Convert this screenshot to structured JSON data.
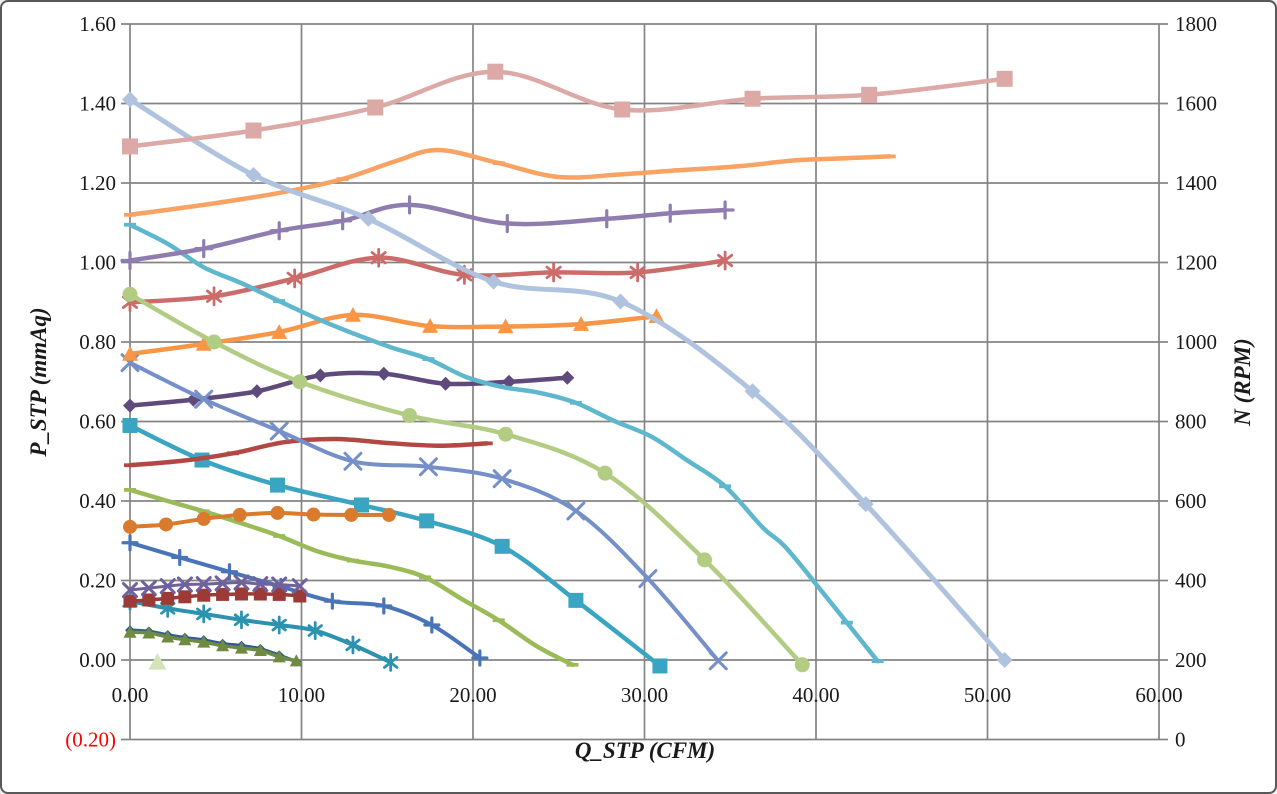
{
  "chart_data": {
    "type": "line",
    "title": "",
    "xlabel": "Q_STP (CFM)",
    "ylabel_left": "P_STP (mmAq)",
    "ylabel_right": "N (RPM)",
    "xlim": [
      0,
      60
    ],
    "ylim_left": [
      -0.2,
      1.6
    ],
    "ylim_right": [
      0,
      1800
    ],
    "grid": true,
    "legend_position": "none",
    "x_tick_labels": [
      "0.00",
      "10.00",
      "20.00",
      "30.00",
      "40.00",
      "50.00",
      "60.00"
    ],
    "y_left_tick_labels": [
      "1.60",
      "1.40",
      "1.20",
      "1.00",
      "0.80",
      "0.60",
      "0.40",
      "0.20",
      "0.00",
      "(0.20)"
    ],
    "y_left_tick_values": [
      1.6,
      1.4,
      1.2,
      1.0,
      0.8,
      0.6,
      0.4,
      0.2,
      0.0,
      -0.2
    ],
    "y_right_tick_labels": [
      "1800",
      "1600",
      "1400",
      "1200",
      "1000",
      "800",
      "600",
      "400",
      "200",
      "0"
    ],
    "negative_tick_color": "#FF0000",
    "series": [
      {
        "id": "navy-diamond-pq",
        "color": "#2F5B92",
        "marker": "diamond",
        "size": 5,
        "width": 3.5,
        "mstep": 1,
        "points": [
          [
            0,
            0.075
          ],
          [
            1.1,
            0.072
          ],
          [
            2.2,
            0.063
          ],
          [
            3.2,
            0.056
          ],
          [
            4.3,
            0.05
          ],
          [
            5.4,
            0.041
          ],
          [
            6.5,
            0.036
          ],
          [
            7.6,
            0.028
          ],
          [
            8.7,
            0.012
          ],
          [
            9.7,
            -0.004
          ]
        ]
      },
      {
        "id": "darkgreen-triangle-pq",
        "color": "#6F8B43",
        "marker": "triangle",
        "size": 6.5,
        "width": 3.5,
        "mstep": 1,
        "points": [
          [
            0,
            0.07
          ],
          [
            1.1,
            0.068
          ],
          [
            2.2,
            0.058
          ],
          [
            3.2,
            0.051
          ],
          [
            4.3,
            0.045
          ],
          [
            5.4,
            0.036
          ],
          [
            6.5,
            0.03
          ],
          [
            7.6,
            0.024
          ],
          [
            8.7,
            0.008
          ],
          [
            9.7,
            -0.002
          ]
        ]
      },
      {
        "id": "navy-plus-pq",
        "color": "#4A74B8",
        "marker": "plus",
        "size": 7,
        "width": 4,
        "mstep": 1,
        "points": [
          [
            0,
            0.295
          ],
          [
            2.9,
            0.258
          ],
          [
            5.8,
            0.222
          ],
          [
            8.8,
            0.185
          ],
          [
            11.8,
            0.148
          ],
          [
            14.8,
            0.136
          ],
          [
            17.6,
            0.088
          ],
          [
            20.4,
            0.005
          ]
        ]
      },
      {
        "id": "teal-asterisk-pq",
        "color": "#2C92AF",
        "marker": "asterisk",
        "size": 8,
        "width": 4,
        "mstep": 1,
        "points": [
          [
            0,
            0.148
          ],
          [
            2.2,
            0.13
          ],
          [
            4.3,
            0.116
          ],
          [
            6.5,
            0.101
          ],
          [
            8.7,
            0.088
          ],
          [
            10.8,
            0.074
          ],
          [
            13,
            0.038
          ],
          [
            15.2,
            -0.006
          ]
        ]
      },
      {
        "id": "darkred-square-n",
        "color": "#9C3A38",
        "marker": "square",
        "size": 6.5,
        "width": 3.5,
        "mstep": 1,
        "points": [
          [
            0,
            0.148
          ],
          [
            1.1,
            0.151
          ],
          [
            2.2,
            0.155
          ],
          [
            3.2,
            0.159
          ],
          [
            4.3,
            0.163
          ],
          [
            5.4,
            0.165
          ],
          [
            6.5,
            0.166
          ],
          [
            7.6,
            0.166
          ],
          [
            8.7,
            0.165
          ],
          [
            9.9,
            0.161
          ]
        ]
      },
      {
        "id": "purple-x-n",
        "color": "#70619E",
        "marker": "x",
        "size": 6.5,
        "width": 3,
        "mstep": 1,
        "points": [
          [
            0,
            0.176
          ],
          [
            1.1,
            0.181
          ],
          [
            2.2,
            0.186
          ],
          [
            3.2,
            0.19
          ],
          [
            4.3,
            0.191
          ],
          [
            5.4,
            0.193
          ],
          [
            6.5,
            0.195
          ],
          [
            7.6,
            0.191
          ],
          [
            8.7,
            0.19
          ],
          [
            9.9,
            0.186
          ]
        ]
      },
      {
        "id": "palegreen-triangle-n",
        "color": "#D5E3BB",
        "marker": "triangle",
        "size": 9,
        "width": 3,
        "mstep": 1,
        "points": [
          [
            1.6,
            -0.005
          ]
        ]
      },
      {
        "id": "olive-dash-pq",
        "color": "#9BBB59",
        "marker": "dash",
        "size": 6,
        "width": 4.5,
        "mstep": 2,
        "points": [
          [
            0,
            0.428
          ],
          [
            2.2,
            0.4
          ],
          [
            4.3,
            0.374
          ],
          [
            6.5,
            0.344
          ],
          [
            8.7,
            0.312
          ],
          [
            10.9,
            0.274
          ],
          [
            13,
            0.25
          ],
          [
            15.1,
            0.235
          ],
          [
            17.2,
            0.208
          ],
          [
            19.4,
            0.152
          ],
          [
            21.5,
            0.1
          ],
          [
            23.7,
            0.035
          ],
          [
            25.8,
            -0.012
          ]
        ]
      },
      {
        "id": "teal-square-pq",
        "color": "#39A5C2",
        "marker": "square",
        "size": 7.5,
        "width": 4.5,
        "mstep": 1,
        "points": [
          [
            0,
            0.59
          ],
          [
            4.2,
            0.503
          ],
          [
            8.6,
            0.44
          ],
          [
            13.5,
            0.39
          ],
          [
            17.3,
            0.35
          ],
          [
            21.7,
            0.286
          ],
          [
            26,
            0.15
          ],
          [
            30.9,
            -0.015
          ]
        ]
      },
      {
        "id": "orange-circle-n",
        "color": "#D97A2D",
        "marker": "circle",
        "size": 7,
        "width": 4,
        "mstep": 1,
        "points": [
          [
            0,
            0.335
          ],
          [
            2.1,
            0.341
          ],
          [
            4.3,
            0.355
          ],
          [
            6.4,
            0.365
          ],
          [
            8.6,
            0.37
          ],
          [
            10.7,
            0.366
          ],
          [
            12.9,
            0.365
          ],
          [
            15.1,
            0.365
          ]
        ]
      },
      {
        "id": "darkred-dash-n",
        "color": "#B34744",
        "marker": "dash",
        "size": 6,
        "width": 4.5,
        "mstep": 2,
        "points": [
          [
            0,
            0.49
          ],
          [
            3,
            0.501
          ],
          [
            6,
            0.52
          ],
          [
            9,
            0.548
          ],
          [
            12,
            0.556
          ],
          [
            15,
            0.546
          ],
          [
            18,
            0.539
          ],
          [
            20.8,
            0.545
          ]
        ]
      },
      {
        "id": "purple-diamond-n",
        "color": "#5F4A7C",
        "marker": "diamond",
        "size": 7,
        "width": 4.5,
        "mstep": 1,
        "points": [
          [
            0,
            0.64
          ],
          [
            3.7,
            0.655
          ],
          [
            7.4,
            0.676
          ],
          [
            11.1,
            0.716
          ],
          [
            14.8,
            0.72
          ],
          [
            18.4,
            0.695
          ],
          [
            22.1,
            0.7
          ],
          [
            25.5,
            0.71
          ]
        ]
      },
      {
        "id": "bluegray-x-pq",
        "color": "#7590C8",
        "marker": "x",
        "size": 8,
        "width": 4,
        "mstep": 1,
        "points": [
          [
            0,
            0.748
          ],
          [
            4.3,
            0.656
          ],
          [
            8.7,
            0.576
          ],
          [
            13,
            0.5
          ],
          [
            17.4,
            0.486
          ],
          [
            21.7,
            0.456
          ],
          [
            26,
            0.375
          ],
          [
            30.2,
            0.205
          ],
          [
            34.3,
            -0.002
          ]
        ]
      },
      {
        "id": "red-asterisk-n",
        "color": "#CB6C6A",
        "marker": "asterisk",
        "size": 8.5,
        "width": 4.5,
        "mstep": 1,
        "points": [
          [
            0,
            0.9
          ],
          [
            4.9,
            0.915
          ],
          [
            9.6,
            0.96
          ],
          [
            14.5,
            1.012
          ],
          [
            19.5,
            0.969
          ],
          [
            24.7,
            0.975
          ],
          [
            29.6,
            0.975
          ],
          [
            34.7,
            1.005
          ]
        ]
      },
      {
        "id": "orange-triangle-n",
        "color": "#F79646",
        "marker": "triangle",
        "size": 8,
        "width": 4.5,
        "mstep": 1,
        "points": [
          [
            0,
            0.77
          ],
          [
            4.3,
            0.795
          ],
          [
            8.7,
            0.825
          ],
          [
            13,
            0.868
          ],
          [
            17.5,
            0.84
          ],
          [
            21.9,
            0.839
          ],
          [
            26.3,
            0.845
          ],
          [
            30.7,
            0.865
          ]
        ]
      },
      {
        "id": "lightgreen-circle-pq",
        "color": "#B2CC84",
        "marker": "circle",
        "size": 7.5,
        "width": 4.5,
        "mstep": 1,
        "points": [
          [
            0,
            0.92
          ],
          [
            4.9,
            0.8
          ],
          [
            9.9,
            0.7
          ],
          [
            16.3,
            0.615
          ],
          [
            21.9,
            0.568
          ],
          [
            27.7,
            0.47
          ],
          [
            33.5,
            0.252
          ],
          [
            39.2,
            -0.012
          ]
        ]
      },
      {
        "id": "cyan-dash-pq",
        "color": "#5FB7CE",
        "marker": "dash",
        "size": 6,
        "width": 4.5,
        "mstep": 4,
        "points": [
          [
            0,
            1.095
          ],
          [
            2.2,
            1.047
          ],
          [
            4.3,
            0.988
          ],
          [
            6.5,
            0.948
          ],
          [
            8.7,
            0.903
          ],
          [
            11,
            0.857
          ],
          [
            13,
            0.822
          ],
          [
            15.2,
            0.787
          ],
          [
            17.4,
            0.757
          ],
          [
            19.6,
            0.712
          ],
          [
            21.7,
            0.687
          ],
          [
            23.9,
            0.672
          ],
          [
            26,
            0.647
          ],
          [
            28.2,
            0.602
          ],
          [
            30.4,
            0.562
          ],
          [
            32.5,
            0.502
          ],
          [
            34.7,
            0.437
          ],
          [
            36.9,
            0.333
          ],
          [
            38.2,
            0.285
          ],
          [
            40.3,
            0.175
          ],
          [
            41.8,
            0.094
          ],
          [
            43.6,
            -0.003
          ]
        ]
      },
      {
        "id": "purple-plus-n",
        "color": "#8F7DB0",
        "marker": "plus",
        "size": 8,
        "width": 4.5,
        "mstep": 1,
        "points": [
          [
            0,
            1.005
          ],
          [
            4.3,
            1.035
          ],
          [
            8.7,
            1.08
          ],
          [
            12.4,
            1.105
          ],
          [
            16.3,
            1.145
          ],
          [
            22,
            1.098
          ],
          [
            27.8,
            1.11
          ],
          [
            31.5,
            1.124
          ],
          [
            34.7,
            1.132
          ]
        ]
      },
      {
        "id": "orange-dash-n",
        "color": "#F8A263",
        "marker": "dash",
        "size": 6,
        "width": 4.5,
        "mstep": 3,
        "points": [
          [
            0,
            1.12
          ],
          [
            4.3,
            1.145
          ],
          [
            8.7,
            1.175
          ],
          [
            12.4,
            1.21
          ],
          [
            15.5,
            1.255
          ],
          [
            18,
            1.283
          ],
          [
            21.5,
            1.25
          ],
          [
            25,
            1.215
          ],
          [
            28.7,
            1.222
          ],
          [
            32,
            1.232
          ],
          [
            35.5,
            1.242
          ],
          [
            38.8,
            1.257
          ],
          [
            41.5,
            1.262
          ],
          [
            44.3,
            1.267
          ]
        ]
      },
      {
        "id": "lightblue-diamond-pq",
        "color": "#AFC3DF",
        "marker": "diamond",
        "size": 8,
        "width": 5,
        "mstep": 1,
        "points": [
          [
            0,
            1.41
          ],
          [
            7.2,
            1.22
          ],
          [
            13.9,
            1.11
          ],
          [
            21.2,
            0.952
          ],
          [
            28.6,
            0.902
          ],
          [
            36.3,
            0.676
          ],
          [
            42.9,
            0.392
          ],
          [
            51,
            0.0
          ]
        ]
      },
      {
        "id": "pink-square-n",
        "color": "#DCA9A7",
        "marker": "square",
        "size": 8,
        "width": 4.5,
        "mstep": 1,
        "points": [
          [
            0,
            1.292
          ],
          [
            7.2,
            1.332
          ],
          [
            14.3,
            1.39
          ],
          [
            21.3,
            1.48
          ],
          [
            28.7,
            1.385
          ],
          [
            36.3,
            1.412
          ],
          [
            43.1,
            1.422
          ],
          [
            51,
            1.462
          ]
        ]
      }
    ]
  },
  "style": {
    "grid_color": "#848484",
    "tick_text_color": "#1a1a1a",
    "background": "#FFFFFF",
    "border_color": "#595959"
  }
}
